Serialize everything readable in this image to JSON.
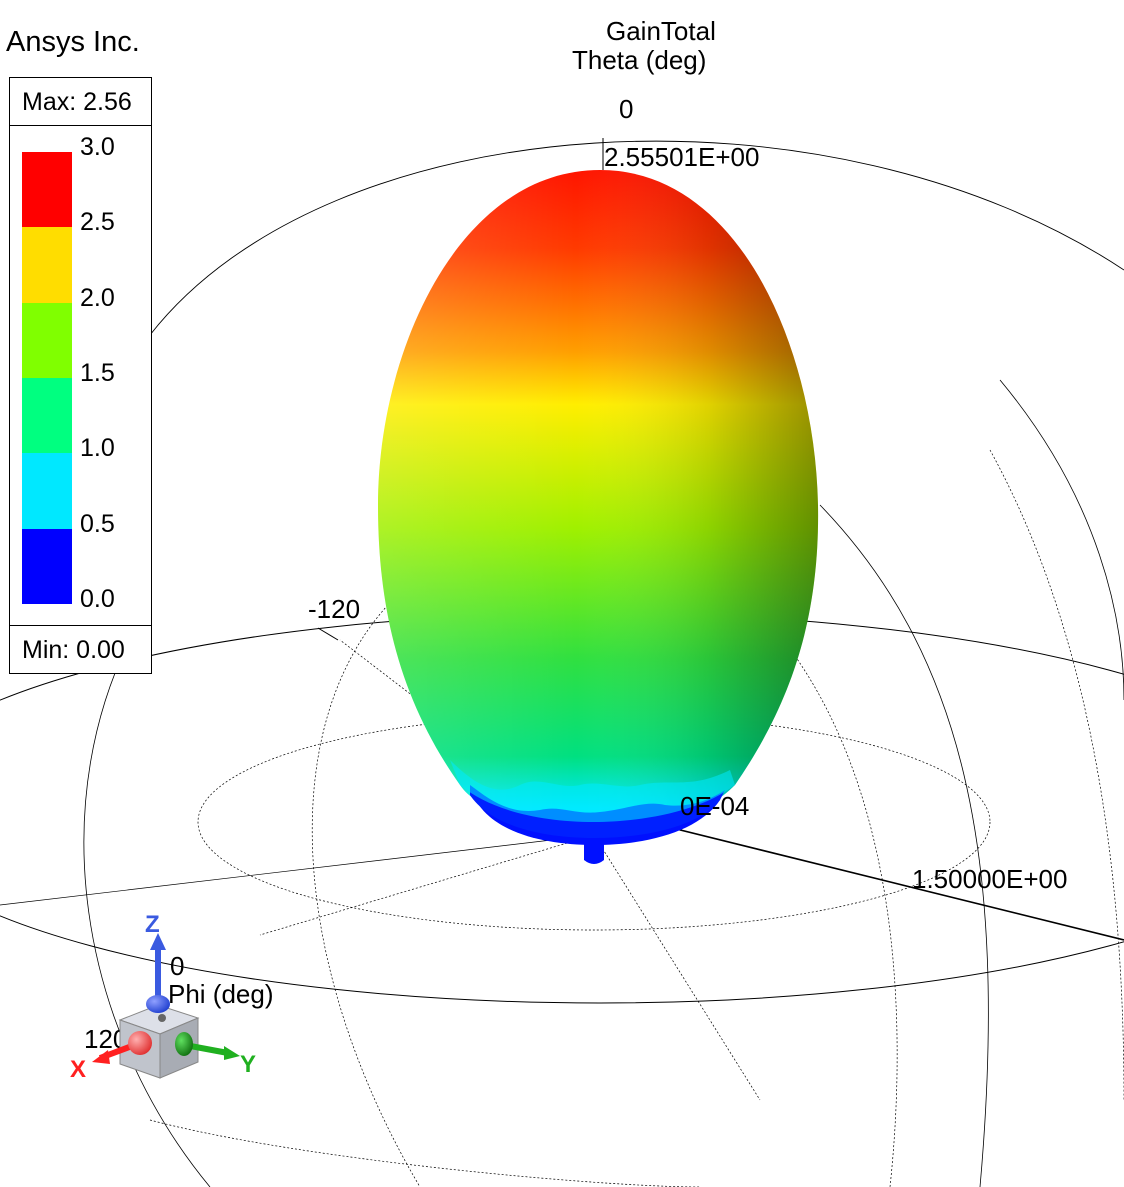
{
  "brand": "Ansys Inc.",
  "plot": {
    "quantity": "GainTotal",
    "theta_axis_label": "Theta (deg)",
    "theta_zero": "0",
    "peak_label": "2.55501E+00",
    "phi_minus_120": "-120",
    "inner_ring_label": "0E-04",
    "radial_label": "1.50000E+00",
    "phi_zero": "0",
    "phi_axis_label": "Phi (deg)",
    "phi_120": "120"
  },
  "legend": {
    "max_label": "Max: 2.56",
    "min_label": "Min: 0.00",
    "ticks": [
      "3.0",
      "2.5",
      "2.0",
      "1.5",
      "1.0",
      "0.5",
      "0.0"
    ],
    "bands": [
      {
        "color": "#ff0000"
      },
      {
        "color": "#ffdd00"
      },
      {
        "color": "#80ff00"
      },
      {
        "color": "#00ff80"
      },
      {
        "color": "#00e8ff"
      },
      {
        "color": "#0000ff"
      }
    ]
  },
  "triad": {
    "x_label": "X",
    "y_label": "Y",
    "z_label": "Z",
    "x_color": "#ff2020",
    "y_color": "#20b020",
    "z_color": "#3a5ae0"
  },
  "colors": {
    "top": "#ff1a00",
    "upper": "#ffee00",
    "middle": "#60e020",
    "lower": "#00e070",
    "base": "#00f0ff",
    "bottom": "#0010ff"
  }
}
